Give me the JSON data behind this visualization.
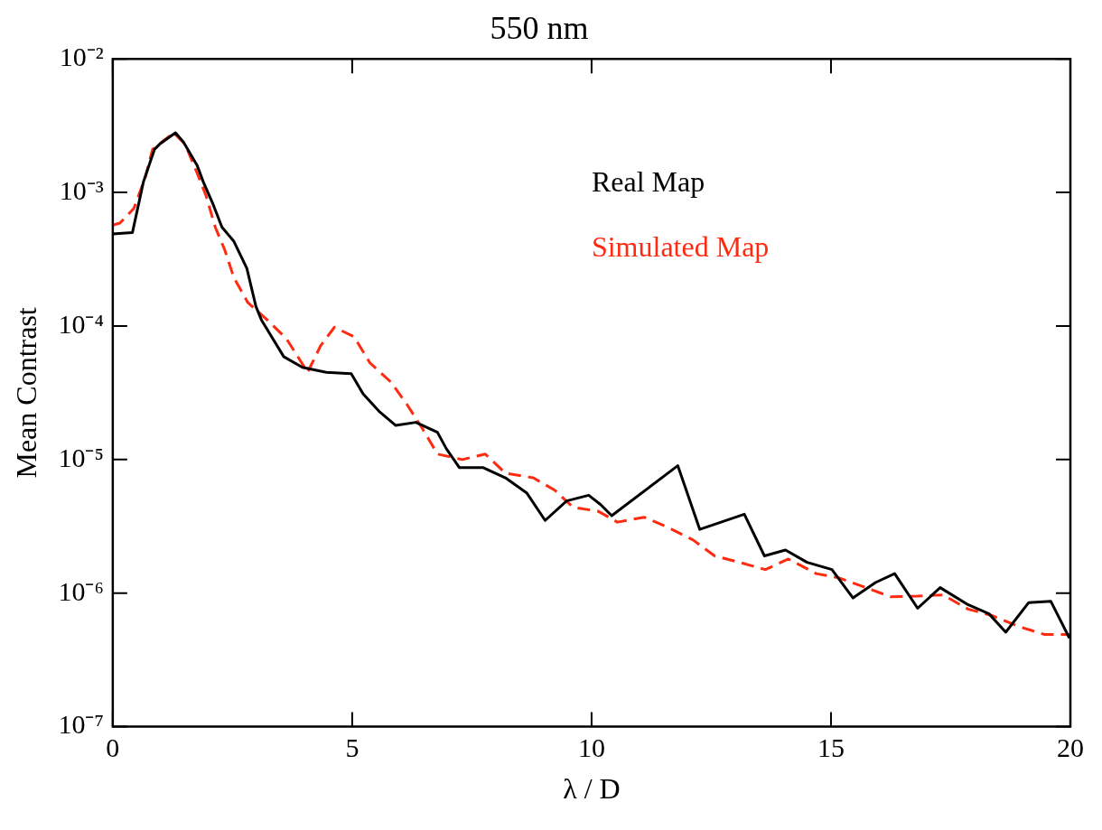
{
  "chart_data": {
    "type": "line",
    "title": "550 nm",
    "xlabel": "λ / D",
    "ylabel": "Mean Contrast",
    "log": "y",
    "grid": false,
    "legend": "top right",
    "marker": "none",
    "xlim": [
      0,
      20
    ],
    "xticks": [
      0,
      5,
      10,
      15,
      20
    ],
    "ylim": [
      1e-07,
      0.01
    ],
    "yticks": [
      {
        "value": 1e-07,
        "label": "10⁻⁷"
      },
      {
        "value": 1e-06,
        "label": "10⁻⁶"
      },
      {
        "value": 1e-05,
        "label": "10⁻⁵"
      },
      {
        "value": 0.0001,
        "label": "10⁻⁴"
      },
      {
        "value": 0.001,
        "label": "10⁻³"
      },
      {
        "value": 0.01,
        "label": "10⁻²"
      }
    ],
    "series": [
      {
        "name": "Real Map",
        "color": "#000000",
        "line_style": "solid",
        "x": [
          0,
          0.41,
          0.64,
          0.87,
          0.98,
          1.31,
          1.47,
          1.76,
          1.89,
          2.08,
          2.28,
          2.53,
          2.8,
          2.99,
          3.11,
          3.57,
          3.96,
          4.46,
          4.98,
          5.23,
          5.56,
          5.91,
          6.33,
          6.78,
          6.97,
          7.24,
          7.74,
          8.2,
          8.65,
          9.03,
          9.48,
          9.94,
          10.19,
          10.42,
          11.8,
          12.26,
          13.19,
          13.61,
          14.05,
          14.5,
          15.02,
          15.46,
          15.93,
          16.33,
          16.81,
          17.28,
          17.86,
          18.3,
          18.65,
          19.13,
          19.59,
          19.98
        ],
        "values": [
          0.00049,
          0.0005,
          0.0012,
          0.0021,
          0.0023,
          0.0028,
          0.0024,
          0.0016,
          0.0012,
          0.00084,
          0.00055,
          0.00043,
          0.00027,
          0.00014,
          0.00011,
          5.9e-05,
          4.9e-05,
          4.5e-05,
          4.4e-05,
          3.1e-05,
          2.3e-05,
          1.8e-05,
          1.9e-05,
          1.6e-05,
          1.2e-05,
          8.7e-06,
          8.7e-06,
          7.3e-06,
          5.6e-06,
          3.5e-06,
          4.9e-06,
          5.4e-06,
          4.6e-06,
          3.8e-06,
          9e-06,
          3e-06,
          3.9e-06,
          1.9e-06,
          2.1e-06,
          1.7e-06,
          1.5e-06,
          9.2e-07,
          1.2e-06,
          1.4e-06,
          7.7e-07,
          1.1e-06,
          8.2e-07,
          7e-07,
          5.1e-07,
          8.5e-07,
          8.7e-07,
          4.6e-07
        ]
      },
      {
        "name": "Simulated Map",
        "color": "#ff2a10",
        "line_style": "dashed",
        "x": [
          0,
          0.15,
          0.44,
          0.68,
          0.83,
          1.16,
          1.27,
          1.51,
          1.76,
          1.95,
          2.14,
          2.34,
          2.53,
          2.82,
          3.24,
          3.63,
          4.07,
          4.34,
          4.63,
          5.04,
          5.37,
          5.81,
          6.14,
          6.47,
          6.78,
          7.3,
          7.78,
          8.2,
          8.78,
          9.23,
          9.61,
          10.14,
          10.54,
          11.1,
          11.6,
          12.12,
          12.57,
          13.09,
          13.63,
          14.11,
          14.69,
          15.17,
          15.73,
          16.24,
          16.81,
          17.34,
          17.86,
          18.36,
          18.94,
          19.46,
          19.98
        ],
        "values": [
          0.00057,
          0.00059,
          0.00076,
          0.0013,
          0.0021,
          0.0026,
          0.0028,
          0.0023,
          0.0014,
          0.00094,
          0.00055,
          0.00037,
          0.00023,
          0.00015,
          0.00011,
          8e-05,
          4.5e-05,
          7.1e-05,
          9.8e-05,
          8.3e-05,
          5.3e-05,
          3.8e-05,
          2.6e-05,
          1.7e-05,
          1.1e-05,
          1e-05,
          1.1e-05,
          7.9e-06,
          7.3e-06,
          5.9e-06,
          4.4e-06,
          4.1e-06,
          3.4e-06,
          3.7e-06,
          3.1e-06,
          2.5e-06,
          1.9e-06,
          1.7e-06,
          1.5e-06,
          1.8e-06,
          1.4e-06,
          1.3e-06,
          1.1e-06,
          9.4e-07,
          9.5e-07,
          9.7e-07,
          7.6e-07,
          6.8e-07,
          5.6e-07,
          4.9e-07,
          4.9e-07
        ]
      }
    ]
  }
}
